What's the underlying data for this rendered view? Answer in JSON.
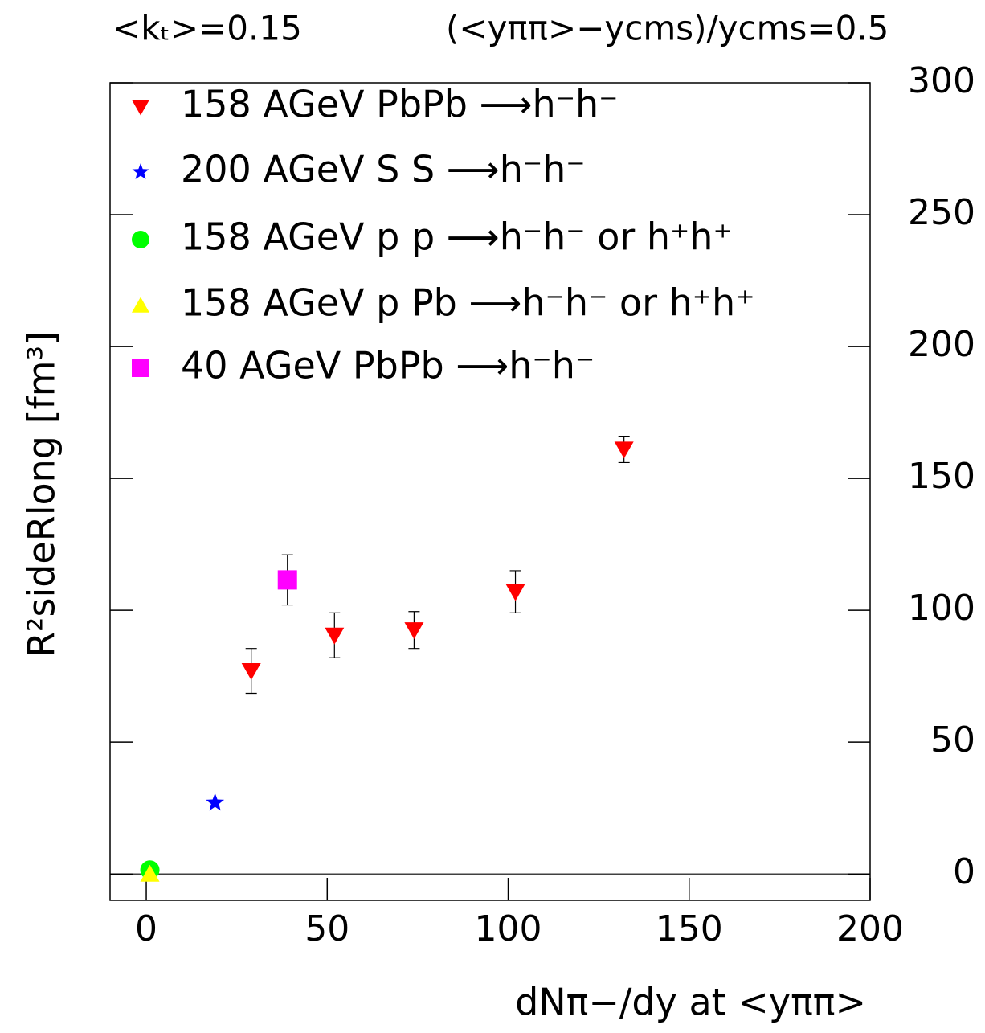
{
  "chart_data": {
    "type": "scatter",
    "annotations": [
      "<kₜ>=0.15",
      "(<yππ>−ycms)/ycms=0.5"
    ],
    "xlabel": "dNπ−/dy  at <yππ>",
    "ylabel": "R²sideRlong [fm³]",
    "xlim": [
      -10,
      200
    ],
    "xticks": [
      0,
      50,
      100,
      150,
      200
    ],
    "ylim": [
      -10,
      300
    ],
    "yticks": [
      0,
      50,
      100,
      150,
      200,
      250,
      300
    ],
    "series": [
      {
        "name": "158 AGeV PbPb ⟶h⁻h⁻",
        "color": "#ff0000",
        "marker": "triangle-down",
        "x": [
          29,
          52,
          74,
          102,
          132
        ],
        "values": [
          77,
          90.5,
          92.5,
          107,
          161
        ],
        "errors": [
          8.5,
          8.5,
          7,
          8,
          5
        ]
      },
      {
        "name": "200 AGeV S S  ⟶h⁻h⁻",
        "color": "#0000ff",
        "marker": "star",
        "x": [
          19
        ],
        "values": [
          27
        ]
      },
      {
        "name": "158 AGeV p p ⟶h⁻h⁻ or h⁺h⁺",
        "color": "#00ff00",
        "marker": "circle",
        "x": [
          1
        ],
        "values": [
          1.5
        ]
      },
      {
        "name": "158 AGeV p Pb  ⟶h⁻h⁻ or h⁺h⁺",
        "color": "#ffff00",
        "marker": "triangle-up",
        "x": [
          1
        ],
        "values": [
          0
        ]
      },
      {
        "name": "40 AGeV PbPb ⟶h⁻h⁻",
        "color": "#ff00ff",
        "marker": "square",
        "x": [
          39
        ],
        "values": [
          111.5
        ],
        "errors": [
          9.5
        ]
      }
    ]
  }
}
